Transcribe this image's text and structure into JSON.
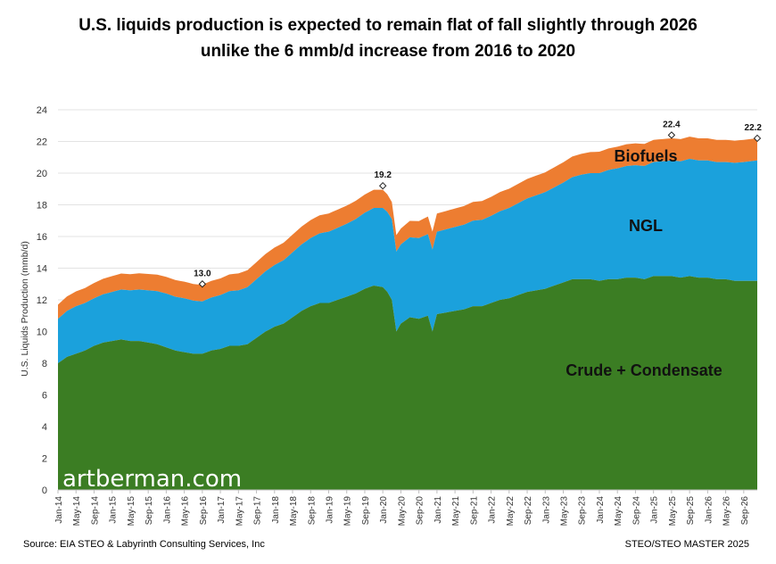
{
  "title": {
    "line1": "U.S. liquids production is expected to remain flat of fall slightly through 2026",
    "line2": "unlike the 6 mmb/d increase from 2016 to 2020"
  },
  "footer": {
    "source": "Source: EIA STEO & Labyrinth Consulting Services, Inc",
    "master": "STEO/STEO MASTER 2025"
  },
  "watermark": "artberman.com",
  "chart_data": {
    "type": "area",
    "stacked": true,
    "title": "U.S. liquids production is expected to remain flat of fall slightly through 2026 unlike the 6 mmb/d increase from 2016 to 2020",
    "ylabel": "U.S. Liquids Production (mmb/d)",
    "xlabel": "",
    "ylim": [
      0,
      24
    ],
    "yticks": [
      0,
      2,
      4,
      6,
      8,
      10,
      12,
      14,
      16,
      18,
      20,
      22,
      24
    ],
    "x_start": "Jan-14",
    "x_end": "Dec-26",
    "x_tick_labels": [
      "Jan-14",
      "May-14",
      "Sep-14",
      "Jan-15",
      "May-15",
      "Sep-15",
      "Jan-16",
      "May-16",
      "Sep-16",
      "Jan-17",
      "May-17",
      "Sep-17",
      "Jan-18",
      "May-18",
      "Sep-18",
      "Jan-19",
      "May-19",
      "Sep-19",
      "Jan-20",
      "May-20",
      "Sep-20",
      "Jan-21",
      "May-21",
      "Sep-21",
      "Jan-22",
      "May-22",
      "Sep-22",
      "Jan-23",
      "May-23",
      "Sep-23",
      "Jan-24",
      "May-24",
      "Sep-24",
      "Jan-25",
      "May-25",
      "Sep-25",
      "Jan-26",
      "May-26",
      "Sep-26"
    ],
    "colors": {
      "crude": "#3b7d23",
      "ngl": "#1ba1dc",
      "biofuels": "#ed7d31"
    },
    "series": [
      {
        "name": "Crude + Condensate",
        "label": "Crude + Condensate",
        "sampled_month_index_values": [
          [
            0,
            8.0
          ],
          [
            2,
            8.4
          ],
          [
            4,
            8.6
          ],
          [
            6,
            8.8
          ],
          [
            8,
            9.1
          ],
          [
            10,
            9.3
          ],
          [
            12,
            9.4
          ],
          [
            14,
            9.5
          ],
          [
            16,
            9.4
          ],
          [
            18,
            9.4
          ],
          [
            20,
            9.3
          ],
          [
            22,
            9.2
          ],
          [
            24,
            9.0
          ],
          [
            26,
            8.8
          ],
          [
            28,
            8.7
          ],
          [
            30,
            8.6
          ],
          [
            32,
            8.6
          ],
          [
            34,
            8.8
          ],
          [
            36,
            8.9
          ],
          [
            38,
            9.1
          ],
          [
            40,
            9.1
          ],
          [
            42,
            9.2
          ],
          [
            44,
            9.6
          ],
          [
            46,
            10.0
          ],
          [
            48,
            10.3
          ],
          [
            50,
            10.5
          ],
          [
            52,
            10.9
          ],
          [
            54,
            11.3
          ],
          [
            56,
            11.6
          ],
          [
            58,
            11.8
          ],
          [
            60,
            11.8
          ],
          [
            62,
            12.0
          ],
          [
            64,
            12.2
          ],
          [
            66,
            12.4
          ],
          [
            68,
            12.7
          ],
          [
            70,
            12.9
          ],
          [
            72,
            12.8
          ],
          [
            73,
            12.5
          ],
          [
            74,
            12.0
          ],
          [
            75,
            10.0
          ],
          [
            76,
            10.5
          ],
          [
            78,
            10.9
          ],
          [
            80,
            10.8
          ],
          [
            82,
            11.0
          ],
          [
            83,
            10.0
          ],
          [
            84,
            11.1
          ],
          [
            86,
            11.2
          ],
          [
            88,
            11.3
          ],
          [
            90,
            11.4
          ],
          [
            92,
            11.6
          ],
          [
            94,
            11.6
          ],
          [
            96,
            11.8
          ],
          [
            98,
            12.0
          ],
          [
            100,
            12.1
          ],
          [
            102,
            12.3
          ],
          [
            104,
            12.5
          ],
          [
            106,
            12.6
          ],
          [
            108,
            12.7
          ],
          [
            110,
            12.9
          ],
          [
            112,
            13.1
          ],
          [
            114,
            13.3
          ],
          [
            116,
            13.3
          ],
          [
            118,
            13.3
          ],
          [
            120,
            13.2
          ],
          [
            122,
            13.3
          ],
          [
            124,
            13.3
          ],
          [
            126,
            13.4
          ],
          [
            128,
            13.4
          ],
          [
            130,
            13.3
          ],
          [
            132,
            13.5
          ],
          [
            134,
            13.5
          ],
          [
            136,
            13.5
          ],
          [
            138,
            13.4
          ],
          [
            140,
            13.5
          ],
          [
            142,
            13.4
          ],
          [
            144,
            13.4
          ],
          [
            146,
            13.3
          ],
          [
            148,
            13.3
          ],
          [
            150,
            13.2
          ],
          [
            152,
            13.2
          ],
          [
            155,
            13.2
          ]
        ]
      },
      {
        "name": "NGL",
        "label": "NGL",
        "sampled_month_index_values": [
          [
            0,
            2.8
          ],
          [
            4,
            3.0
          ],
          [
            8,
            3.0
          ],
          [
            12,
            3.1
          ],
          [
            16,
            3.2
          ],
          [
            20,
            3.3
          ],
          [
            24,
            3.4
          ],
          [
            28,
            3.4
          ],
          [
            32,
            3.3
          ],
          [
            36,
            3.4
          ],
          [
            40,
            3.5
          ],
          [
            44,
            3.7
          ],
          [
            48,
            3.9
          ],
          [
            52,
            4.1
          ],
          [
            56,
            4.3
          ],
          [
            60,
            4.5
          ],
          [
            64,
            4.6
          ],
          [
            68,
            4.8
          ],
          [
            72,
            5.0
          ],
          [
            74,
            5.1
          ],
          [
            76,
            5.0
          ],
          [
            80,
            5.1
          ],
          [
            84,
            5.2
          ],
          [
            88,
            5.3
          ],
          [
            92,
            5.4
          ],
          [
            96,
            5.5
          ],
          [
            100,
            5.7
          ],
          [
            104,
            5.9
          ],
          [
            108,
            6.1
          ],
          [
            112,
            6.3
          ],
          [
            116,
            6.6
          ],
          [
            120,
            6.8
          ],
          [
            124,
            7.0
          ],
          [
            128,
            7.1
          ],
          [
            132,
            7.2
          ],
          [
            136,
            7.3
          ],
          [
            140,
            7.4
          ],
          [
            144,
            7.4
          ],
          [
            148,
            7.4
          ],
          [
            152,
            7.5
          ],
          [
            155,
            7.6
          ]
        ]
      },
      {
        "name": "Biofuels",
        "label": "Biofuels",
        "sampled_month_index_values": [
          [
            0,
            0.9
          ],
          [
            12,
            1.0
          ],
          [
            24,
            1.05
          ],
          [
            36,
            1.05
          ],
          [
            48,
            1.1
          ],
          [
            60,
            1.15
          ],
          [
            72,
            1.15
          ],
          [
            76,
            1.0
          ],
          [
            84,
            1.15
          ],
          [
            96,
            1.2
          ],
          [
            108,
            1.25
          ],
          [
            120,
            1.35
          ],
          [
            132,
            1.4
          ],
          [
            144,
            1.4
          ],
          [
            155,
            1.4
          ]
        ]
      }
    ],
    "annotations": [
      {
        "label": "13.0",
        "x_label": "Sep-16",
        "value": 13.0
      },
      {
        "label": "19.2",
        "x_label": "Jan-20",
        "value": 19.2
      },
      {
        "label": "22.4",
        "x_label": "May-25",
        "value": 22.4
      },
      {
        "label": "22.2",
        "x_label": "Dec-26",
        "value": 22.2
      }
    ],
    "area_labels": {
      "biofuels": "Biofuels",
      "ngl": "NGL",
      "crude": "Crude + Condensate"
    }
  }
}
